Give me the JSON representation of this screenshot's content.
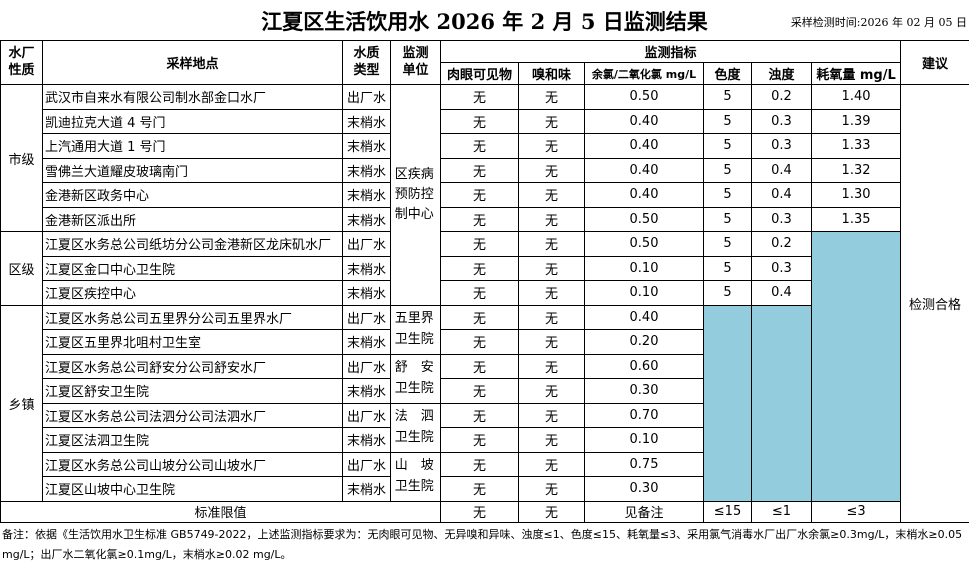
{
  "title": "江夏区生活饮用水 2026 年 2 月 5 日监测结果",
  "sample_time": "采样检测时间:2026 年 02 月 05 日",
  "table": {
    "headers": {
      "plant_type": "水厂性质",
      "site": "采样地点",
      "water_type": "水质类型",
      "unit": "监测单位",
      "indicators": "监测指标",
      "advice": "建议",
      "columns": [
        "肉眼可见物",
        "嗅和味",
        "余氯/二氧化氯 mg/L",
        "色度",
        "浊度",
        "耗氧量 mg/L"
      ]
    },
    "groups": [
      {
        "label": "市级",
        "rows": [
          [
            "武汉市自来水有限公司制水部金口水厂",
            "出厂水",
            "无",
            "无",
            "0.50",
            "5",
            "0.2",
            "1.40"
          ],
          [
            "凯迪拉克大道 4 号门",
            "末梢水",
            "无",
            "无",
            "0.40",
            "5",
            "0.3",
            "1.39"
          ],
          [
            "上汽通用大道 1 号门",
            "末梢水",
            "无",
            "无",
            "0.40",
            "5",
            "0.3",
            "1.33"
          ],
          [
            "雪佛兰大道耀皮玻璃南门",
            "末梢水",
            "无",
            "无",
            "0.40",
            "5",
            "0.4",
            "1.32"
          ],
          [
            "金港新区政务中心",
            "末梢水",
            "无",
            "无",
            "0.40",
            "5",
            "0.4",
            "1.30"
          ],
          [
            "金港新区派出所",
            "末梢水",
            "无",
            "无",
            "0.50",
            "5",
            "0.3",
            "1.35"
          ]
        ]
      },
      {
        "label": "区级",
        "rows": [
          [
            "江夏区水务总公司纸坊分公司金港新区龙床矶水厂",
            "出厂水",
            "无",
            "无",
            "0.50",
            "5",
            "0.2"
          ],
          [
            "江夏区金口中心卫生院",
            "末梢水",
            "无",
            "无",
            "0.10",
            "5",
            "0.3"
          ],
          [
            "江夏区疾控中心",
            "末梢水",
            "无",
            "无",
            "0.10",
            "5",
            "0.4"
          ]
        ]
      },
      {
        "label": "乡镇",
        "rows": [
          [
            "江夏区水务总公司五里界分公司五里界水厂",
            "出厂水",
            "无",
            "无",
            "0.40"
          ],
          [
            "江夏区五里界北咀村卫生室",
            "末梢水",
            "无",
            "无",
            "0.20"
          ],
          [
            "江夏区水务总公司舒安分公司舒安水厂",
            "出厂水",
            "无",
            "无",
            "0.60"
          ],
          [
            "江夏区舒安卫生院",
            "末梢水",
            "无",
            "无",
            "0.30"
          ],
          [
            "江夏区水务总公司法泗分公司法泗水厂",
            "出厂水",
            "无",
            "无",
            "0.70"
          ],
          [
            "江夏区法泗卫生院",
            "末梢水",
            "无",
            "无",
            "0.10"
          ],
          [
            "江夏区水务总公司山坡分公司山坡水厂",
            "出厂水",
            "无",
            "无",
            "0.75"
          ],
          [
            "江夏区山坡中心卫生院",
            "末梢水",
            "无",
            "无",
            "0.30"
          ]
        ]
      }
    ],
    "units": [
      "区疾病预防控制中心",
      "五里界卫生院",
      "舒　安卫生院",
      "法　泗卫生院",
      "山　坡卫生院"
    ],
    "advice": "检测合格",
    "standard": {
      "label": "标准限值",
      "values": [
        "无",
        "无",
        "见备注",
        "≤15",
        "≤1",
        "≤3"
      ]
    }
  },
  "note": "备注：依据《生活饮用水卫生标准 GB5749-2022，上述监测指标要求为：无肉眼可见物、无异嗅和异味、浊度≤1、色度≤15、耗氧量≤3、采用氯气消毒水厂出厂水余氯≥0.3mg/L，末梢水≥0.05 mg/L；出厂水二氧化氯≥0.1mg/L，末梢水≥0.02 mg/L。"
}
